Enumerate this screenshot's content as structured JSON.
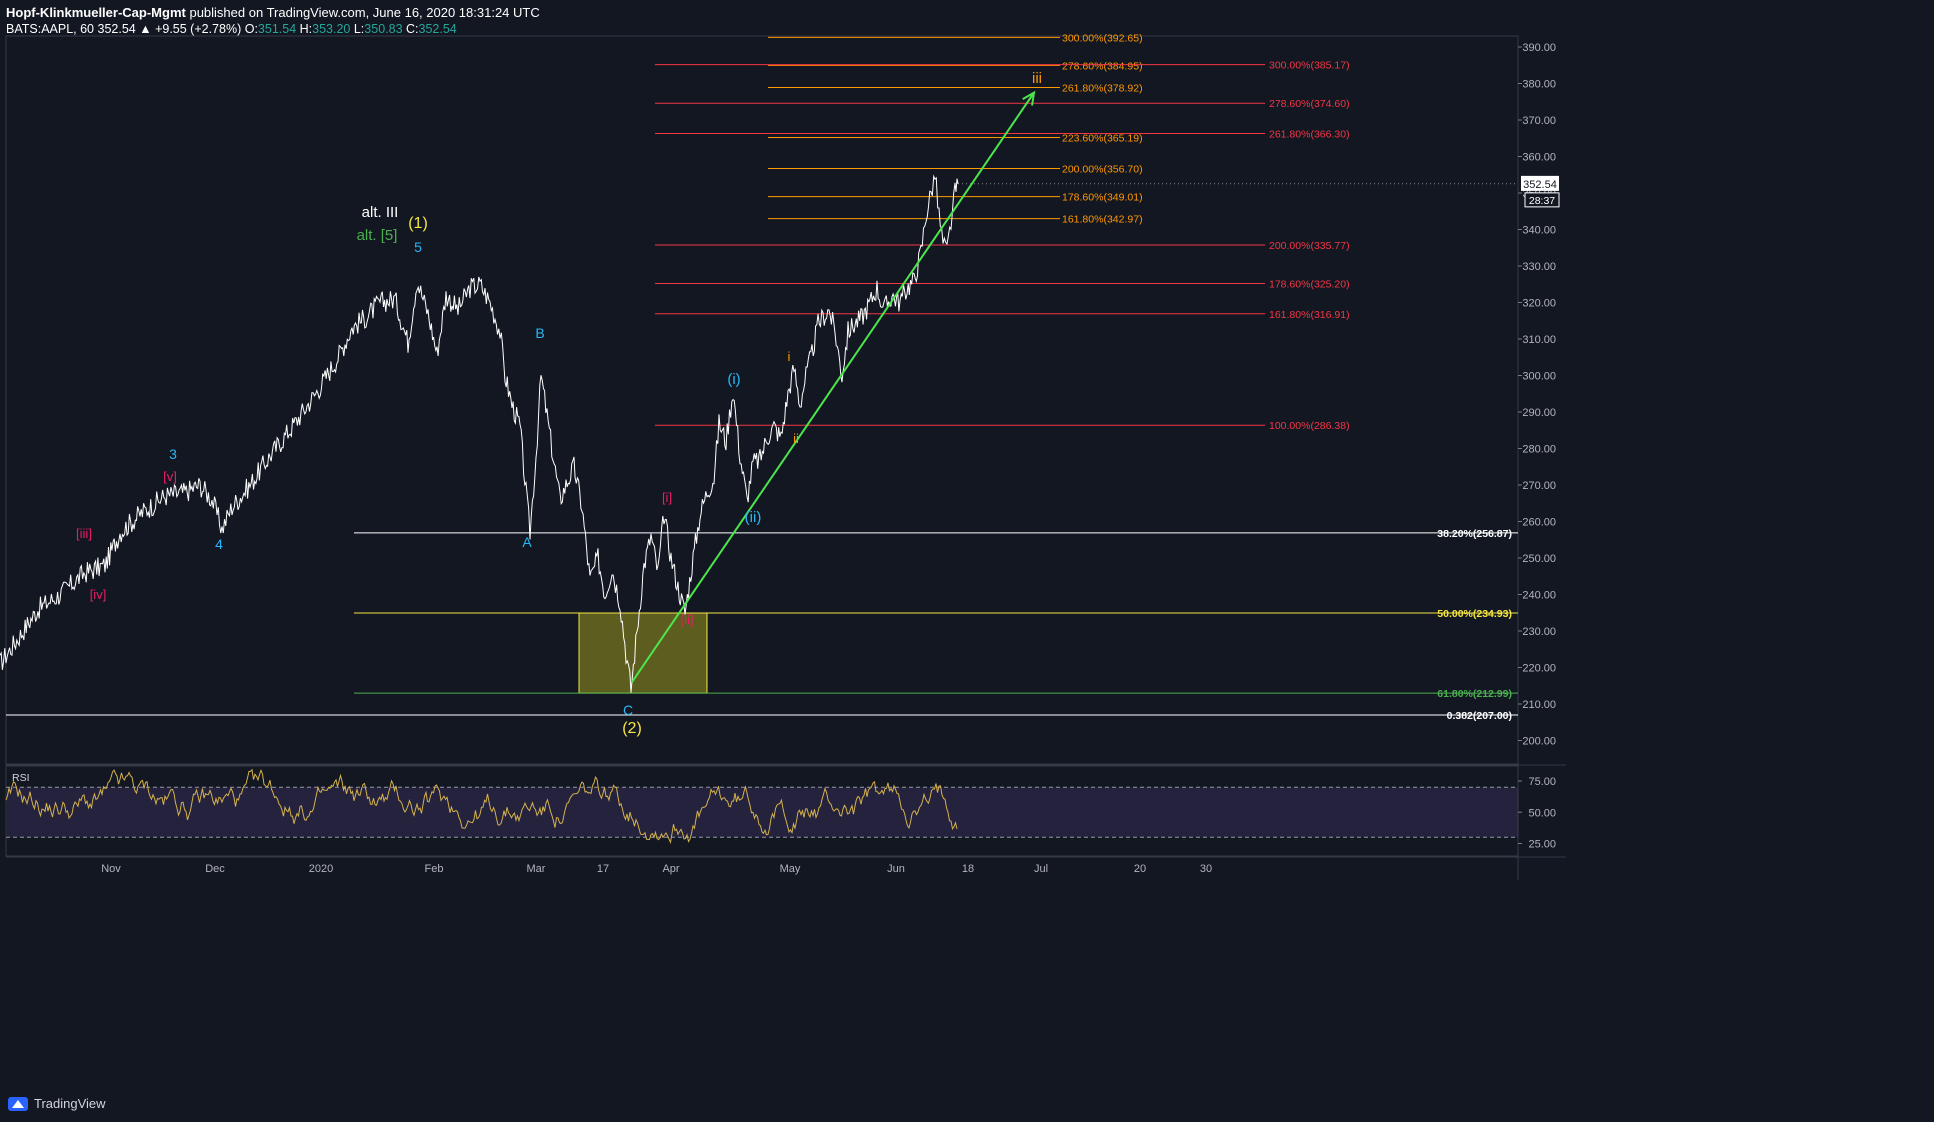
{
  "header": {
    "author": "Hopf-Klinkmueller-Cap-Mgmt",
    "published": "published on TradingView.com, June 16, 2020 18:31:24 UTC"
  },
  "symbol_line": {
    "symbol": "BATS:AAPL, 60",
    "last": "352.54",
    "change": "▲ +9.55 (+2.78%)",
    "o_label": "O:",
    "o": "351.54",
    "h_label": "H:",
    "h": "353.20",
    "l_label": "L:",
    "l": "350.83",
    "c_label": "C:",
    "c": "352.54"
  },
  "footer": {
    "brand": "TradingView"
  },
  "chart_data": {
    "type": "line",
    "main_pane": {
      "ylim": [
        193,
        394
      ],
      "y_ticks": [
        200,
        210,
        220,
        230,
        240,
        250,
        260,
        270,
        280,
        290,
        300,
        310,
        320,
        330,
        340,
        350,
        360,
        370,
        380,
        390
      ],
      "y_tick_labels": [
        "200.00",
        "210.00",
        "220.00",
        "230.00",
        "240.00",
        "250.00",
        "260.00",
        "270.00",
        "280.00",
        "290.00",
        "300.00",
        "310.00",
        "320.00",
        "330.00",
        "340.00",
        "350.00",
        "360.00",
        "370.00",
        "380.00",
        "390.00"
      ],
      "last_price_label": "352.54",
      "countdown_label": "28:37",
      "x_labels": [
        "Nov",
        "Dec",
        "2020",
        "Feb",
        "Mar",
        "17",
        "Apr",
        "May",
        "Jun",
        "18",
        "Jul",
        "20",
        "30"
      ],
      "price_path": [
        [
          0,
          221
        ],
        [
          18,
          228
        ],
        [
          38,
          236
        ],
        [
          60,
          240
        ],
        [
          85,
          246
        ],
        [
          105,
          248
        ],
        [
          120,
          257
        ],
        [
          140,
          262
        ],
        [
          165,
          267
        ],
        [
          185,
          268
        ],
        [
          200,
          270
        ],
        [
          212,
          266
        ],
        [
          222,
          258
        ],
        [
          232,
          264
        ],
        [
          250,
          270
        ],
        [
          270,
          278
        ],
        [
          295,
          287
        ],
        [
          318,
          296
        ],
        [
          338,
          305
        ],
        [
          352,
          313
        ],
        [
          366,
          316
        ],
        [
          380,
          320
        ],
        [
          395,
          321
        ],
        [
          408,
          309
        ],
        [
          417,
          326
        ],
        [
          428,
          317
        ],
        [
          437,
          306
        ],
        [
          446,
          322
        ],
        [
          458,
          318
        ],
        [
          470,
          324
        ],
        [
          480,
          325
        ],
        [
          490,
          320
        ],
        [
          500,
          312
        ],
        [
          505,
          300
        ],
        [
          512,
          292
        ],
        [
          520,
          286
        ],
        [
          526,
          268
        ],
        [
          530,
          257
        ],
        [
          536,
          278
        ],
        [
          541,
          300
        ],
        [
          547,
          289
        ],
        [
          553,
          278
        ],
        [
          560,
          266
        ],
        [
          566,
          270
        ],
        [
          574,
          275
        ],
        [
          582,
          264
        ],
        [
          590,
          244
        ],
        [
          598,
          250
        ],
        [
          605,
          240
        ],
        [
          612,
          247
        ],
        [
          620,
          238
        ],
        [
          626,
          224
        ],
        [
          631,
          214
        ],
        [
          637,
          230
        ],
        [
          644,
          248
        ],
        [
          651,
          256
        ],
        [
          658,
          246
        ],
        [
          664,
          262
        ],
        [
          671,
          250
        ],
        [
          678,
          242
        ],
        [
          685,
          235
        ],
        [
          692,
          248
        ],
        [
          700,
          262
        ],
        [
          707,
          268
        ],
        [
          714,
          272
        ],
        [
          719,
          287
        ],
        [
          726,
          282
        ],
        [
          733,
          296
        ],
        [
          740,
          278
        ],
        [
          747,
          266
        ],
        [
          753,
          276
        ],
        [
          760,
          277
        ],
        [
          767,
          283
        ],
        [
          774,
          286
        ],
        [
          781,
          283
        ],
        [
          788,
          295
        ],
        [
          794,
          302
        ],
        [
          800,
          292
        ],
        [
          806,
          300
        ],
        [
          812,
          306
        ],
        [
          818,
          314
        ],
        [
          823,
          316
        ],
        [
          829,
          318
        ],
        [
          835,
          312
        ],
        [
          842,
          300
        ],
        [
          848,
          312
        ],
        [
          854,
          314
        ],
        [
          862,
          316
        ],
        [
          870,
          320
        ],
        [
          877,
          324
        ],
        [
          884,
          318
        ],
        [
          892,
          322
        ],
        [
          900,
          320
        ],
        [
          907,
          324
        ],
        [
          914,
          326
        ],
        [
          921,
          334
        ],
        [
          926,
          344
        ],
        [
          931,
          350
        ],
        [
          935,
          355
        ],
        [
          939,
          344
        ],
        [
          943,
          336
        ],
        [
          947,
          334
        ],
        [
          951,
          342
        ],
        [
          955,
          350
        ],
        [
          958,
          352.5
        ]
      ],
      "fib_levels": [
        {
          "label": "300.00%(392.65)",
          "value": 392.65,
          "color": "#ff9800"
        },
        {
          "label": "278.60%(384.95)",
          "value": 384.95,
          "color": "#ff9800"
        },
        {
          "label": "261.80%(378.92)",
          "value": 378.92,
          "color": "#ff9800"
        },
        {
          "label": "223.60%(365.19)",
          "value": 365.19,
          "color": "#ff9800"
        },
        {
          "label": "200.00%(356.70)",
          "value": 356.7,
          "color": "#ff9800"
        },
        {
          "label": "178.60%(349.01)",
          "value": 349.01,
          "color": "#ff9800"
        },
        {
          "label": "161.80%(342.97)",
          "value": 342.97,
          "color": "#ff9800"
        },
        {
          "label": "300.00%(385.17)",
          "value": 385.17,
          "color": "#f23645"
        },
        {
          "label": "278.60%(374.60)",
          "value": 374.6,
          "color": "#f23645"
        },
        {
          "label": "261.80%(366.30)",
          "value": 366.3,
          "color": "#f23645"
        },
        {
          "label": "200.00%(335.77)",
          "value": 335.77,
          "color": "#f23645"
        },
        {
          "label": "178.60%(325.20)",
          "value": 325.2,
          "color": "#f23645"
        },
        {
          "label": "161.80%(316.91)",
          "value": 316.91,
          "color": "#f23645"
        },
        {
          "label": "100.00%(286.38)",
          "value": 286.38,
          "color": "#f23645"
        },
        {
          "label": "38.20%(256.87)",
          "value": 256.87,
          "color": "#ffffff"
        },
        {
          "label": "50.00%(234.93)",
          "value": 234.93,
          "color": "#f5e642"
        },
        {
          "label": "61.80%(212.99)",
          "value": 212.99,
          "color": "#4caf50"
        },
        {
          "label": "0.382(207.00)",
          "value": 207.0,
          "color": "#ffffff"
        }
      ],
      "wave_labels": [
        {
          "text": "alt. III",
          "color": "#ffffff"
        },
        {
          "text": "(1)",
          "color": "#f5e642"
        },
        {
          "text": "alt. [5]",
          "color": "#4caf50"
        },
        {
          "text": "5",
          "color": "#29b6f6"
        },
        {
          "text": "B",
          "color": "#29b6f6"
        },
        {
          "text": "3",
          "color": "#29b6f6"
        },
        {
          "text": "[v]",
          "color": "#e91e63"
        },
        {
          "text": "[iii]",
          "color": "#e91e63"
        },
        {
          "text": "4",
          "color": "#29b6f6"
        },
        {
          "text": "[iv]",
          "color": "#e91e63"
        },
        {
          "text": "A",
          "color": "#29b6f6"
        },
        {
          "text": "[i]",
          "color": "#e91e63"
        },
        {
          "text": "[ii]",
          "color": "#e91e63"
        },
        {
          "text": "C",
          "color": "#29b6f6"
        },
        {
          "text": "(2)",
          "color": "#f5e642"
        },
        {
          "text": "(i)",
          "color": "#29b6f6"
        },
        {
          "text": "(ii)",
          "color": "#29b6f6"
        },
        {
          "text": "i",
          "color": "#ff9800"
        },
        {
          "text": "ii",
          "color": "#ff9800"
        },
        {
          "text": "iii",
          "color": "#ff9800"
        }
      ],
      "trend_arrow_color": "#4ce64c"
    },
    "rsi_pane": {
      "label": "RSI",
      "ylim": [
        15,
        87
      ],
      "y_ticks": [
        25,
        50,
        75
      ],
      "y_tick_labels": [
        "25.00",
        "50.00",
        "75.00"
      ],
      "band": [
        30,
        70
      ],
      "line_color": "#d4b24c"
    }
  }
}
